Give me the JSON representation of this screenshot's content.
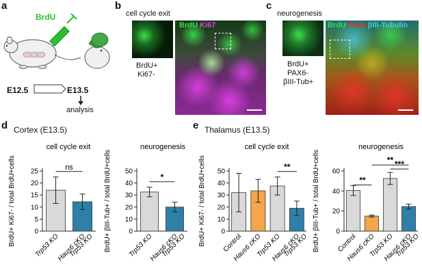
{
  "panels": {
    "a": {
      "label": "a",
      "brdu": "BrdU",
      "e125": "E12.5",
      "e135": "E13.5",
      "analysis": "analysis",
      "colors": {
        "brdu_green": "#29c22f",
        "arrow": "#333333"
      }
    },
    "b": {
      "label": "b",
      "title": "cell cycle exit",
      "inset_line1": "BrdU+",
      "inset_line2": "Ki67-",
      "legend_brdu": "BrdU",
      "legend_ki67": "Ki67",
      "colors": {
        "green": "#3ddc4a",
        "magenta": "#e040e8"
      }
    },
    "c": {
      "label": "c",
      "title": "neurogenesis",
      "inset_line1": "BrdU+",
      "inset_line2": "PAX6-",
      "inset_line3": "βIII-Tub+",
      "legend_brdu": "BrdU",
      "legend_pax6": "Pax6",
      "legend_tub": "βIII-Tubulin",
      "colors": {
        "green": "#3ddc4a",
        "red": "#e8322a",
        "cyan": "#4cc6d9"
      }
    },
    "d": {
      "label": "d",
      "title": "Cortex (E13.5)"
    },
    "e": {
      "label": "e",
      "title": "Thalamus (E13.5)"
    }
  },
  "chart_data": [
    {
      "type": "bar",
      "id": "d-cell-cycle-exit",
      "title": "cell cycle exit",
      "ylabel": "BrdU+ Ki67- / total BrdU+cells",
      "categories": [
        "Trp53 KO",
        "Haus6 cKO Trp53 KO"
      ],
      "values": [
        17,
        12.2
      ],
      "errors": [
        5.5,
        3.2
      ],
      "colors": [
        "#d9d9d9",
        "#2f80a8"
      ],
      "ylim": [
        0,
        25
      ],
      "yticks": [
        0,
        5,
        10,
        15,
        20,
        25
      ],
      "significance": [
        {
          "pair": [
            0,
            1
          ],
          "label": "ns"
        }
      ]
    },
    {
      "type": "bar",
      "id": "d-neurogenesis",
      "title": "neurogenesis",
      "ylabel": "BrdU+ βIII-Tub+ / total BrdU+cells",
      "categories": [
        "Trp53 KO",
        "Haus6 cKO Trp53 KO"
      ],
      "values": [
        32.5,
        20
      ],
      "errors": [
        4,
        4
      ],
      "colors": [
        "#d9d9d9",
        "#2f80a8"
      ],
      "ylim": [
        0,
        50
      ],
      "yticks": [
        0,
        10,
        20,
        30,
        40,
        50
      ],
      "significance": [
        {
          "pair": [
            0,
            1
          ],
          "label": "*"
        }
      ]
    },
    {
      "type": "bar",
      "id": "e-cell-cycle-exit",
      "title": "cell cycle exit",
      "ylabel": "BrdU+ Ki67- / total BrdU+cells",
      "categories": [
        "Control",
        "Haus6 cKO",
        "Trp53 KO",
        "Haus6 cKO Trp53 KO"
      ],
      "values": [
        32,
        33.5,
        37.5,
        19
      ],
      "errors": [
        16,
        9.5,
        7.5,
        6
      ],
      "colors": [
        "#d9d9d9",
        "#f5a54a",
        "#d9d9d9",
        "#2f80a8"
      ],
      "ylim": [
        0,
        50
      ],
      "yticks": [
        0,
        10,
        20,
        30,
        40,
        50
      ],
      "significance": [
        {
          "pair": [
            2,
            3
          ],
          "label": "**"
        }
      ]
    },
    {
      "type": "bar",
      "id": "e-neurogenesis",
      "title": "neurogenesis",
      "ylabel": "BrdU+ βIII-Tub+ / total BrdU+cells",
      "categories": [
        "Control",
        "Haus6 cKO",
        "Trp53 KO",
        "Haus6 cKO Trp53 KO"
      ],
      "values": [
        40.5,
        15,
        52.5,
        24.5
      ],
      "errors": [
        5,
        1,
        6,
        2.5
      ],
      "colors": [
        "#d9d9d9",
        "#f5a54a",
        "#d9d9d9",
        "#2f80a8"
      ],
      "ylim": [
        0,
        60
      ],
      "yticks": [
        0,
        20,
        40,
        60
      ],
      "significance": [
        {
          "pair": [
            0,
            1
          ],
          "label": "**"
        },
        {
          "pair": [
            1,
            3
          ],
          "label": "**"
        },
        {
          "pair": [
            2,
            3
          ],
          "label": "***"
        }
      ]
    }
  ]
}
